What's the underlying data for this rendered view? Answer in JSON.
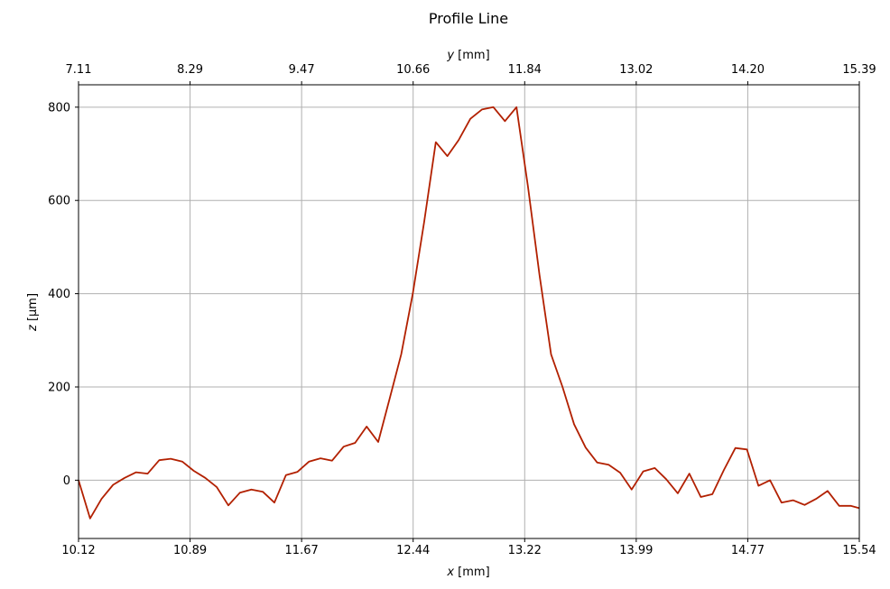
{
  "chart_data": {
    "type": "line",
    "title": "Profile Line",
    "xlabel_var": "x",
    "xlabel_unit": " [mm]",
    "ylabel_var": "z",
    "ylabel_unit": " [µm]",
    "top_xlabel_var": "y",
    "top_xlabel_unit": " [mm]",
    "xlim": [
      10.12,
      15.54
    ],
    "ylim": [
      -125,
      848
    ],
    "x_ticks": [
      "10.12",
      "10.89",
      "11.67",
      "12.44",
      "13.22",
      "13.99",
      "14.77",
      "15.54"
    ],
    "top_x_ticks": [
      "7.11",
      "8.29",
      "9.47",
      "10.66",
      "11.84",
      "13.02",
      "14.20",
      "15.39"
    ],
    "y_ticks": [
      0,
      200,
      400,
      600,
      800
    ],
    "grid": true,
    "line_color": "#b22000",
    "series": [
      {
        "x": [
          10.12,
          10.2,
          10.28,
          10.36,
          10.44,
          10.52,
          10.6,
          10.68,
          10.76,
          10.84,
          10.92,
          11.0,
          11.08,
          11.16,
          11.24,
          11.32,
          11.4,
          11.48,
          11.56,
          11.64,
          11.72,
          11.8,
          11.88,
          11.96,
          12.04,
          12.12,
          12.2,
          12.28,
          12.36,
          12.44,
          12.52,
          12.6,
          12.68,
          12.76,
          12.84,
          12.92,
          13.0,
          13.08,
          13.16,
          13.24,
          13.32,
          13.4,
          13.48,
          13.56,
          13.64,
          13.72,
          13.8,
          13.88,
          13.96,
          14.04,
          14.12,
          14.2,
          14.28,
          14.36,
          14.44,
          14.52,
          14.6,
          14.68,
          14.76,
          14.84,
          14.92,
          15.0,
          15.08,
          15.16,
          15.24,
          15.32,
          15.4,
          15.48,
          15.54
        ],
        "y": [
          0,
          -82,
          -40,
          -10,
          5,
          17,
          14,
          43,
          46,
          40,
          20,
          5,
          -15,
          -54,
          -27,
          -20,
          -25,
          -48,
          11,
          18,
          40,
          47,
          42,
          72,
          80,
          115,
          82,
          175,
          270,
          400,
          555,
          725,
          695,
          730,
          775,
          795,
          800,
          770,
          800,
          630,
          440,
          270,
          200,
          120,
          70,
          38,
          33,
          16,
          -20,
          19,
          26,
          2,
          -28,
          14,
          -36,
          -30,
          22,
          69,
          66,
          -12,
          0,
          -48,
          -43,
          -53,
          -40,
          -23,
          -55,
          -55,
          -60
        ]
      }
    ]
  }
}
